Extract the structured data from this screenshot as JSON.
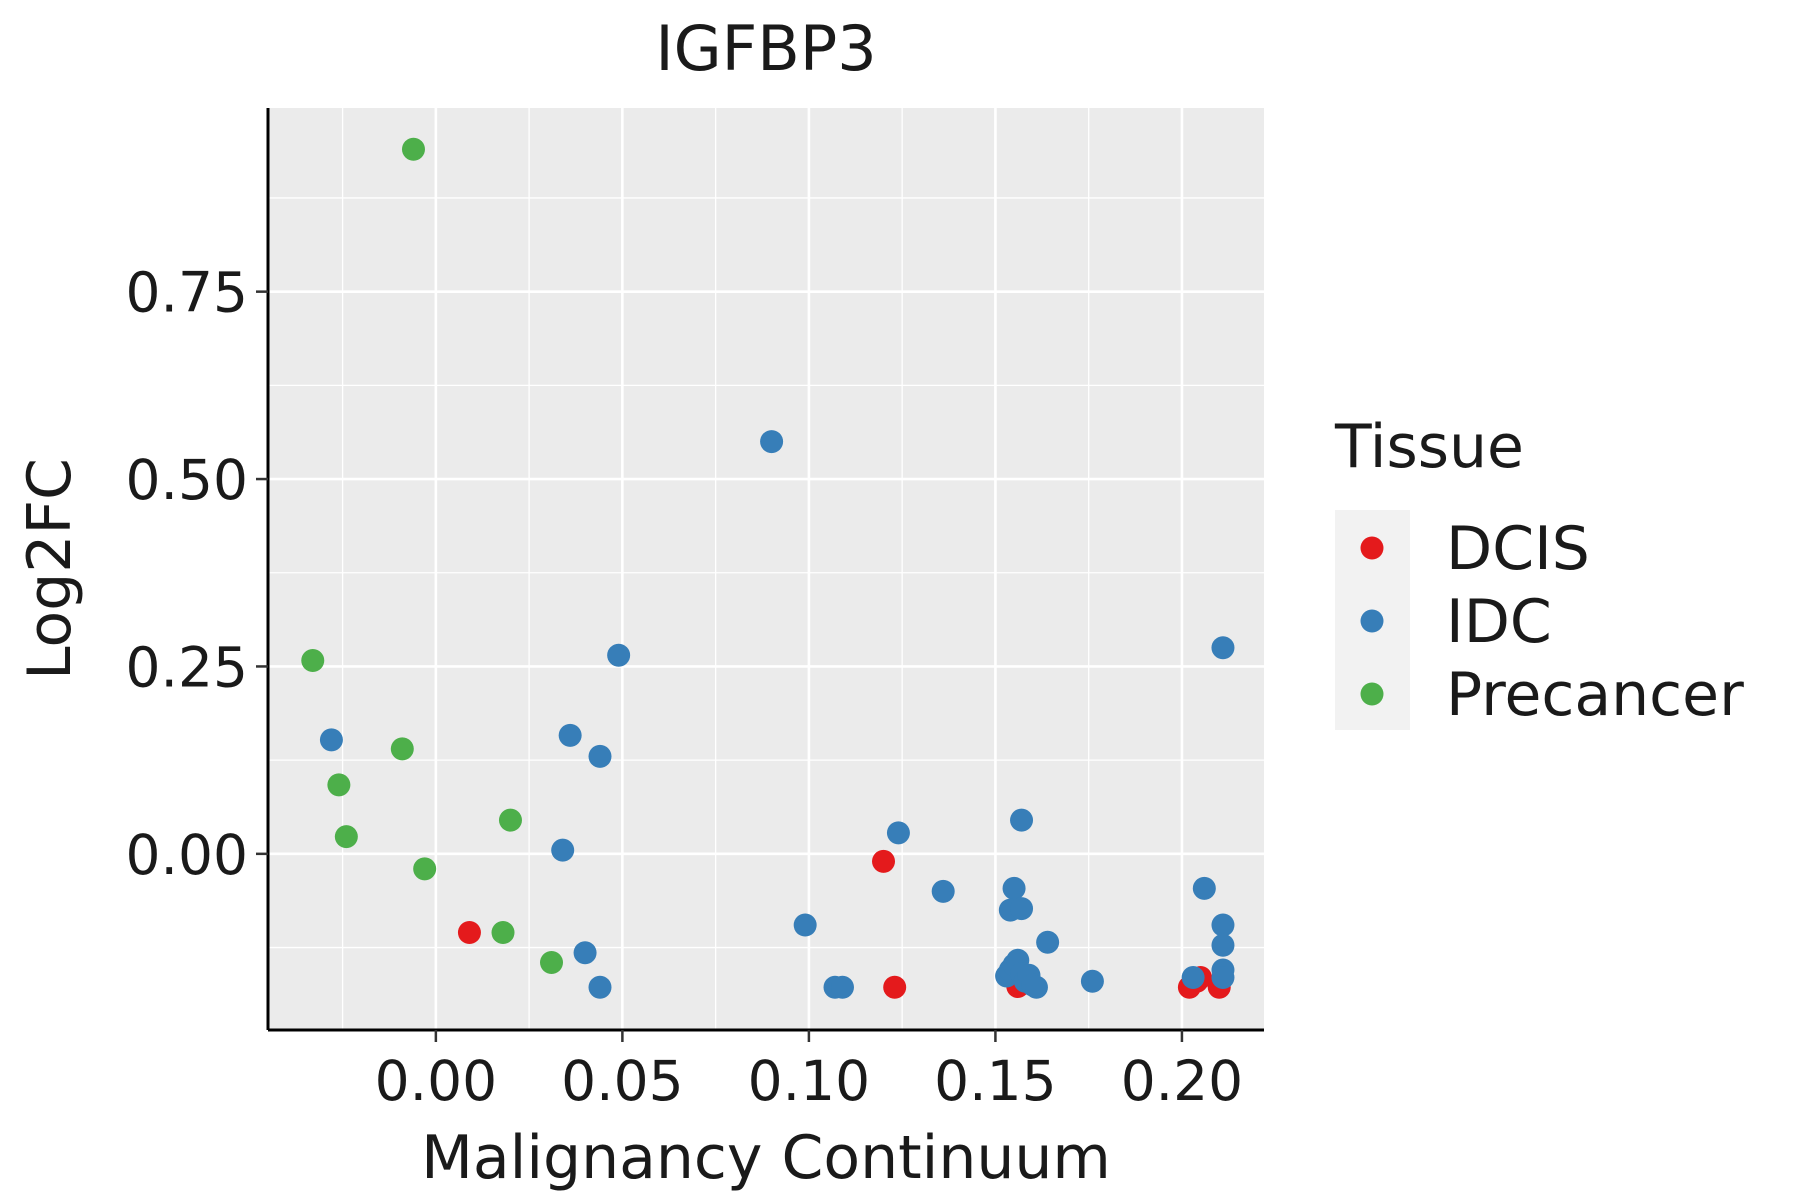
{
  "chart_data": {
    "type": "scatter",
    "title": "IGFBP3",
    "xlabel": "Malignancy Continuum",
    "ylabel": "Log2FC",
    "xlim": [
      -0.045,
      0.222
    ],
    "ylim": [
      -0.235,
      0.995
    ],
    "x_ticks": [
      0.0,
      0.05,
      0.1,
      0.15,
      0.2
    ],
    "x_tick_labels": [
      "0.00",
      "0.05",
      "0.10",
      "0.15",
      "0.20"
    ],
    "y_ticks": [
      0.0,
      0.25,
      0.5,
      0.75
    ],
    "y_tick_labels": [
      "0.00",
      "0.25",
      "0.50",
      "0.75"
    ],
    "grid": true,
    "legend": {
      "title": "Tissue",
      "position": "right",
      "entries": [
        {
          "label": "DCIS",
          "color": "#E41A1C"
        },
        {
          "label": "IDC",
          "color": "#377EB8"
        },
        {
          "label": "Precancer",
          "color": "#4DAF4A"
        }
      ]
    },
    "series": [
      {
        "name": "DCIS",
        "color": "#E41A1C",
        "points": [
          [
            0.009,
            -0.105
          ],
          [
            0.12,
            -0.01
          ],
          [
            0.123,
            -0.178
          ],
          [
            0.156,
            -0.177
          ],
          [
            0.202,
            -0.178
          ],
          [
            0.204,
            -0.17
          ],
          [
            0.205,
            -0.165
          ],
          [
            0.21,
            -0.178
          ]
        ]
      },
      {
        "name": "IDC",
        "color": "#377EB8",
        "points": [
          [
            0.09,
            0.55
          ],
          [
            0.049,
            0.265
          ],
          [
            0.211,
            0.275
          ],
          [
            -0.028,
            0.152
          ],
          [
            0.036,
            0.158
          ],
          [
            0.044,
            0.13
          ],
          [
            0.034,
            0.005
          ],
          [
            0.04,
            -0.132
          ],
          [
            0.044,
            -0.178
          ],
          [
            0.099,
            -0.095
          ],
          [
            0.107,
            -0.178
          ],
          [
            0.109,
            -0.178
          ],
          [
            0.124,
            0.028
          ],
          [
            0.136,
            -0.05
          ],
          [
            0.157,
            0.045
          ],
          [
            0.155,
            -0.046
          ],
          [
            0.154,
            -0.075
          ],
          [
            0.157,
            -0.073
          ],
          [
            0.164,
            -0.118
          ],
          [
            0.176,
            -0.17
          ],
          [
            0.206,
            -0.046
          ],
          [
            0.211,
            -0.095
          ],
          [
            0.211,
            -0.122
          ],
          [
            0.211,
            -0.155
          ],
          [
            0.211,
            -0.165
          ],
          [
            0.203,
            -0.165
          ],
          [
            0.153,
            -0.163
          ],
          [
            0.154,
            -0.155
          ],
          [
            0.155,
            -0.148
          ],
          [
            0.156,
            -0.142
          ],
          [
            0.157,
            -0.16
          ],
          [
            0.158,
            -0.17
          ],
          [
            0.159,
            -0.162
          ],
          [
            0.16,
            -0.175
          ],
          [
            0.161,
            -0.178
          ]
        ]
      },
      {
        "name": "Precancer",
        "color": "#4DAF4A",
        "points": [
          [
            -0.006,
            0.94
          ],
          [
            -0.033,
            0.258
          ],
          [
            -0.009,
            0.14
          ],
          [
            -0.026,
            0.092
          ],
          [
            -0.024,
            0.023
          ],
          [
            -0.003,
            -0.02
          ],
          [
            0.02,
            0.045
          ],
          [
            0.018,
            -0.105
          ],
          [
            0.031,
            -0.145
          ]
        ]
      }
    ]
  }
}
